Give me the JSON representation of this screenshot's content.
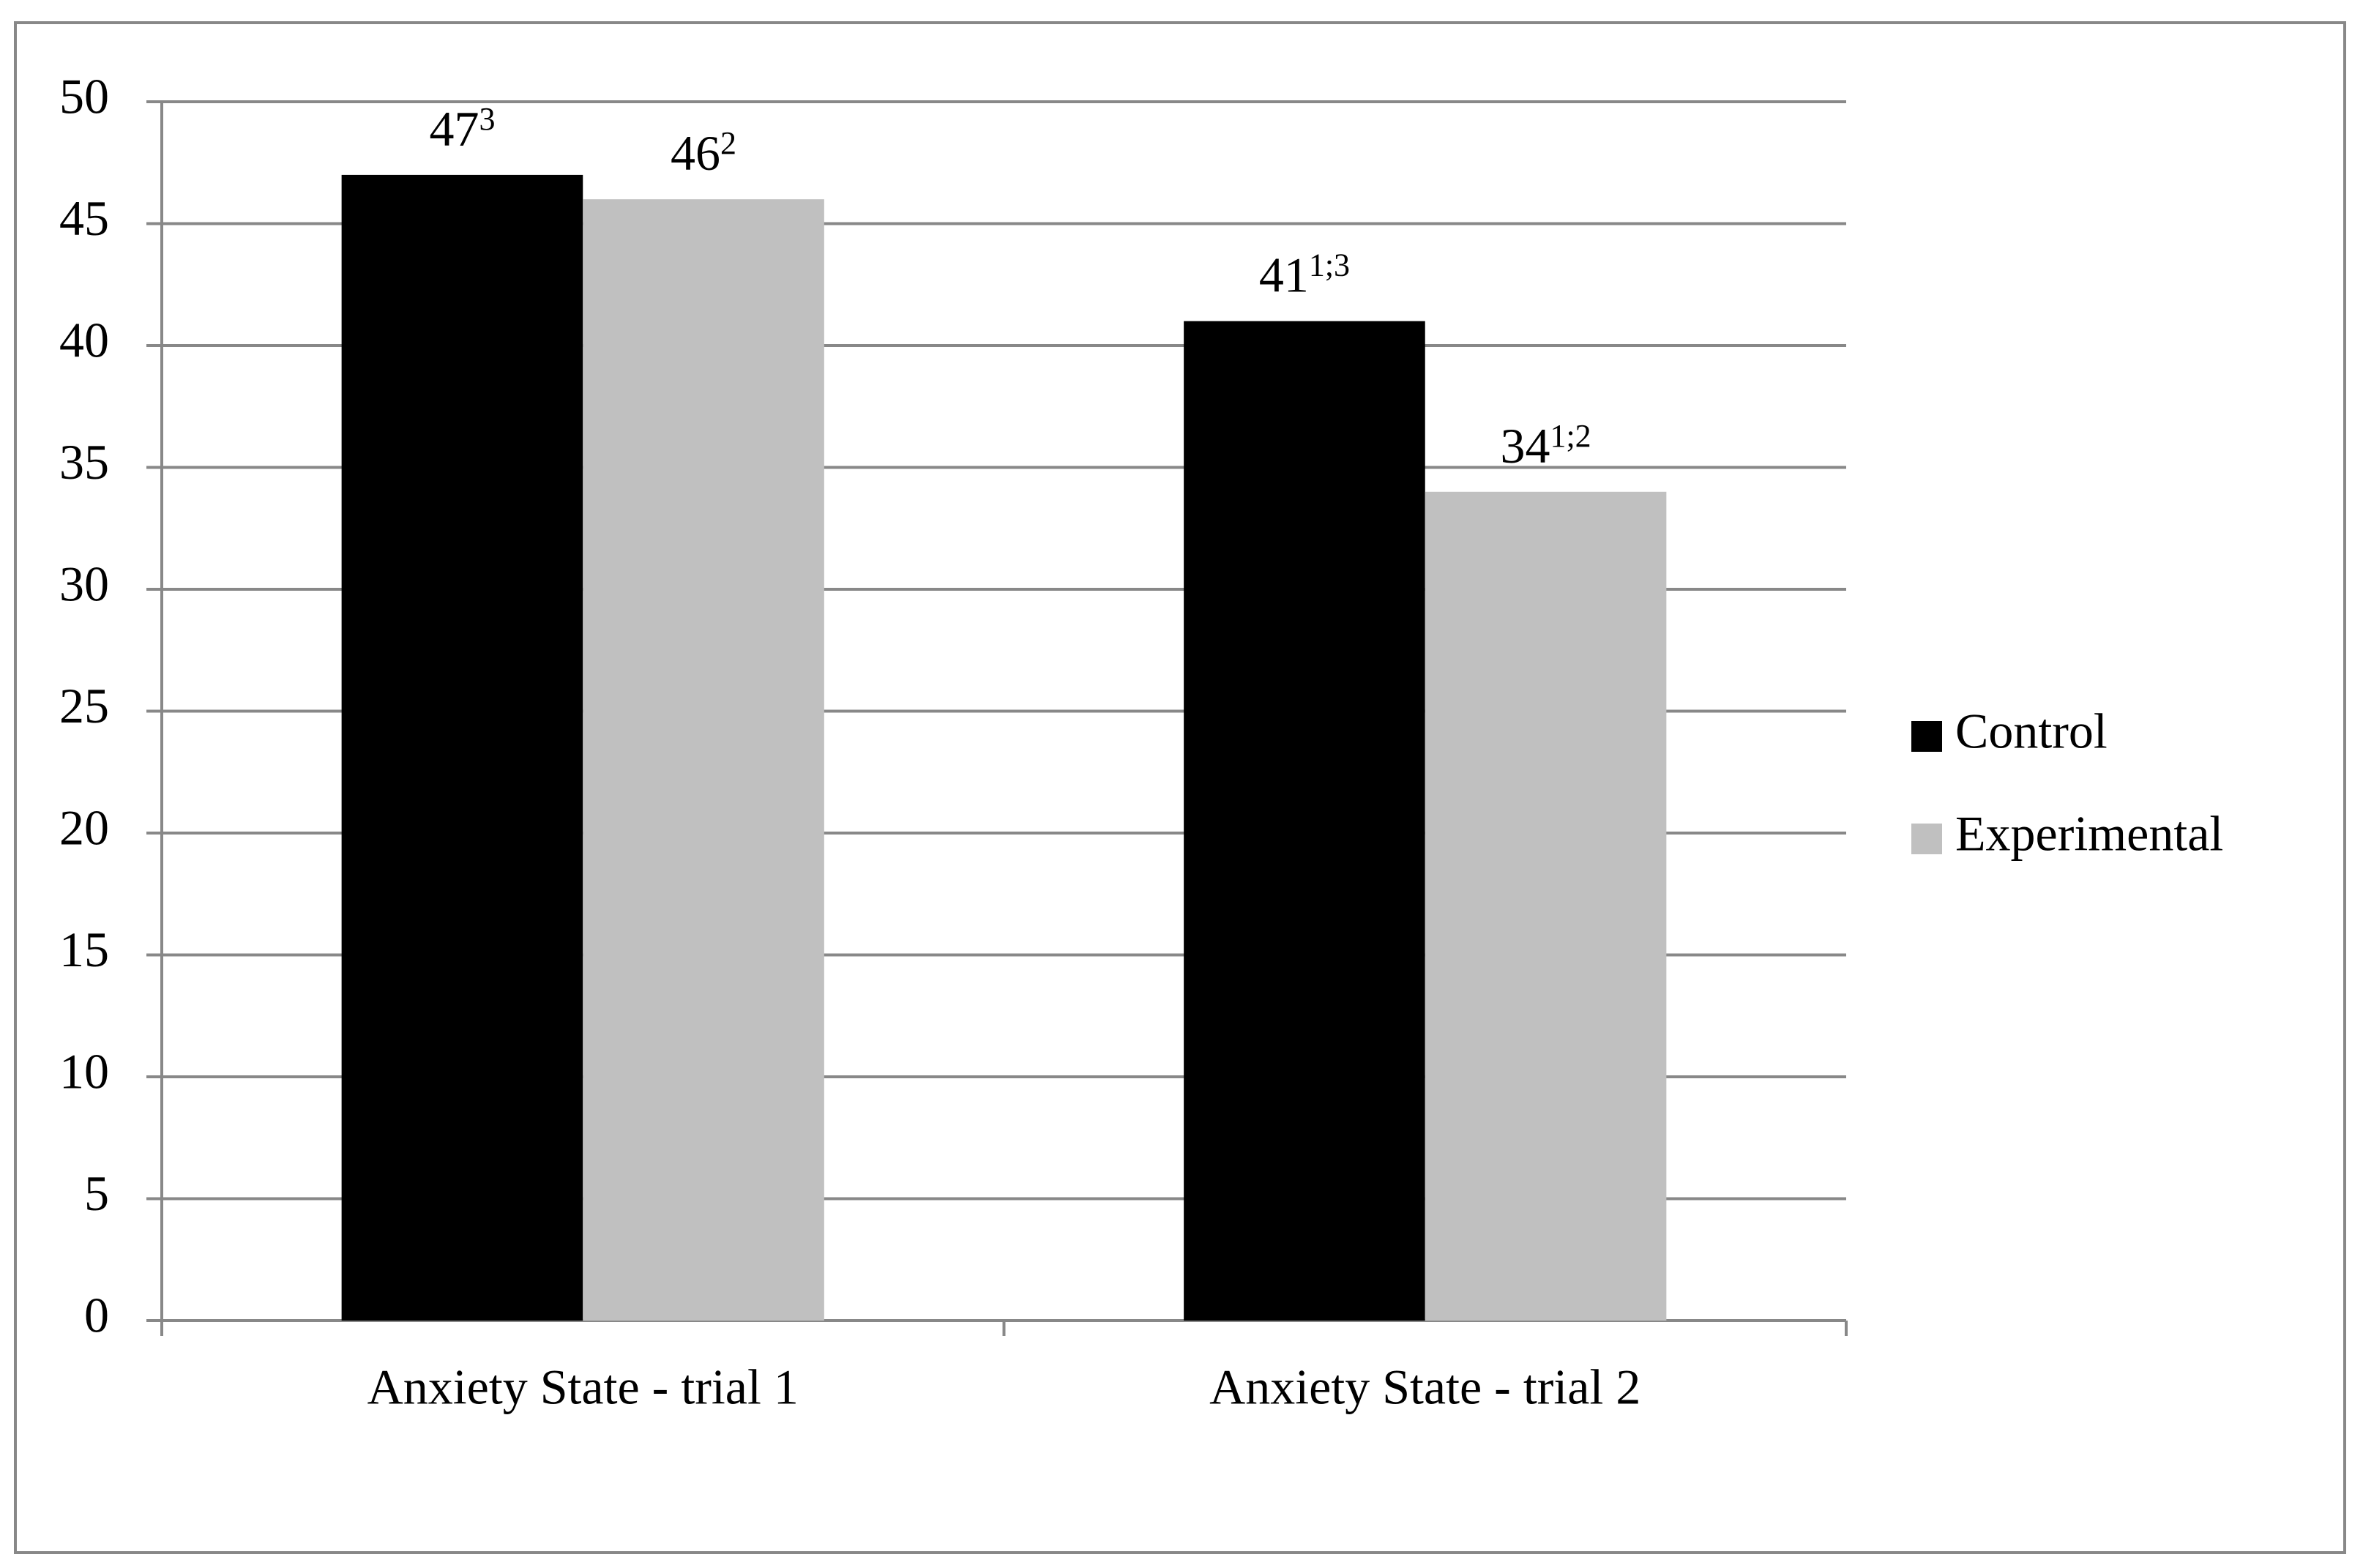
{
  "chart_data": {
    "type": "bar",
    "categories": [
      "Anxiety State - trial 1",
      "Anxiety State - trial 2"
    ],
    "series": [
      {
        "name": "Control",
        "color": "#000000",
        "values": [
          47,
          41
        ],
        "superscripts": [
          "3",
          "1;3"
        ]
      },
      {
        "name": "Experimental",
        "color": "#c0c0c0",
        "values": [
          46,
          34
        ],
        "superscripts": [
          "2",
          "1;2"
        ]
      }
    ],
    "ylim": [
      0,
      50
    ],
    "yticks": [
      0,
      5,
      10,
      15,
      20,
      25,
      30,
      35,
      40,
      45,
      50
    ],
    "grid": true,
    "legend": "right"
  }
}
